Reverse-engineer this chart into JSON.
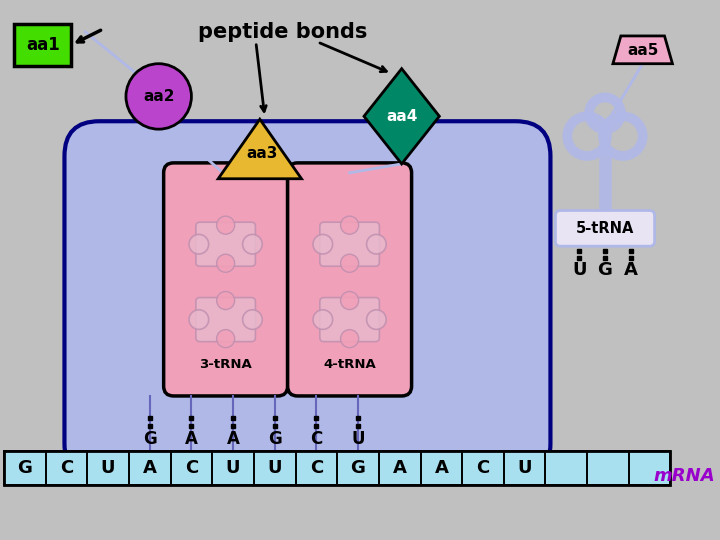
{
  "bg_color": "#c0c0c0",
  "ribosome_color": "#b0b8e8",
  "ribosome_outline": "#000080",
  "trna_slot_color": "#f0a0b8",
  "trna_slot_outline": "#000000",
  "mrna_color": "#a8e0f0",
  "mrna_outline": "#000000",
  "aa1_color": "#44dd00",
  "aa1_text": "aa1",
  "aa2_color": "#bb44cc",
  "aa2_text": "aa2",
  "aa3_color": "#e8b830",
  "aa3_text": "aa3",
  "aa4_color": "#008866",
  "aa4_text": "aa4",
  "aa5_color": "#f0a8c8",
  "aa5_text": "aa5",
  "title": "peptide bonds",
  "label_3trna": "3-tRNA",
  "label_4trna": "4-tRNA",
  "label_5trna": "5-tRNA",
  "codon_3": [
    "G",
    "A",
    "A"
  ],
  "codon_4": [
    "G",
    "C",
    "U"
  ],
  "codon_5": [
    "U",
    "G",
    "A"
  ],
  "mrna_seq": [
    "G",
    "C",
    "U",
    "A",
    "C",
    "U",
    "U",
    "C",
    "G",
    "A",
    "A",
    "C",
    "U",
    "",
    "",
    ""
  ],
  "mrna_label": "mRNA",
  "mrna_label_color": "#9900cc",
  "puzzle_light": "#e8c0d0",
  "connector_color": "#6666bb"
}
